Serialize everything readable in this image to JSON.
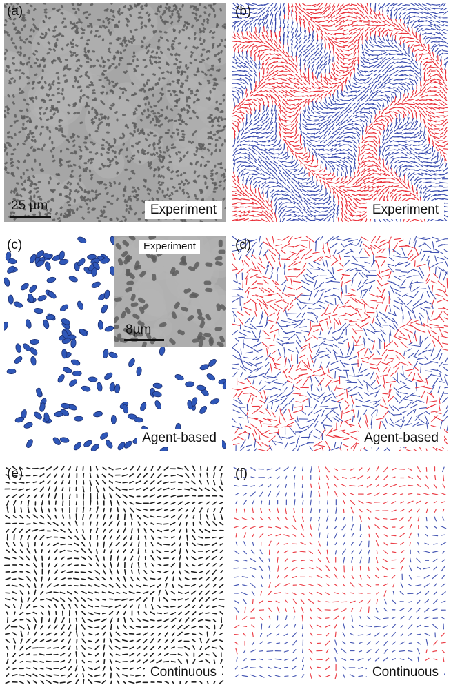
{
  "panels": [
    {
      "label": "(a)",
      "caption": "Experiment",
      "scale_bar": "25 µm",
      "kind": "micrograph"
    },
    {
      "label": "(b)",
      "caption": "Experiment",
      "kind": "vectors-dense"
    },
    {
      "label": "(c)",
      "caption": "Agent-based",
      "inset_caption": "Experiment",
      "inset_scale_bar": "8µm",
      "kind": "agents"
    },
    {
      "label": "(d)",
      "caption": "Agent-based",
      "kind": "vectors-sparse"
    },
    {
      "label": "(e)",
      "caption": "Continuous",
      "kind": "vectors-black"
    },
    {
      "label": "(f)",
      "caption": "Continuous",
      "kind": "vectors-redblue"
    }
  ],
  "colors": {
    "red": "#e8202a",
    "blue": "#2b3ea8",
    "cell_blue": "#2f57b8",
    "micrograph_bg": "#a6a6a6",
    "cell_dark": "#5c5c5c",
    "black": "#111111"
  }
}
